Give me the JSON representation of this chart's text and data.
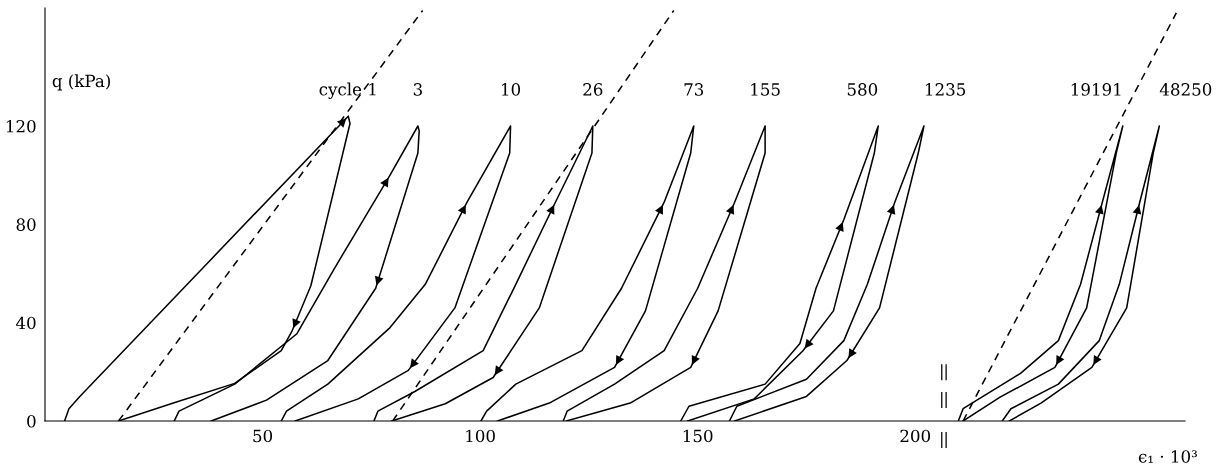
{
  "chart_data": {
    "type": "line",
    "xlabel": "ϵ₁ · 10³",
    "ylabel": "q (kPa)",
    "xlim": [
      0,
      262
    ],
    "ylim": [
      0,
      168
    ],
    "xticks": [
      50,
      100,
      150,
      200
    ],
    "yticks": [
      0,
      40,
      80,
      120
    ],
    "grid": false,
    "series": [
      {
        "name": "cycle 1",
        "color": "#000000",
        "line_style": "solid",
        "x": [
          4.5,
          5.5,
          8,
          37.6,
          69.7,
          70.1,
          61.1,
          56.8,
          54.3,
          43.6,
          29.5,
          16.9
        ],
        "values": [
          0,
          5,
          10,
          64.7,
          124,
          121,
          55,
          36.7,
          28.6,
          15.3,
          7.3,
          0
        ]
      },
      {
        "name": "3",
        "color": "#000000",
        "line_style": "solid",
        "x": [
          29.7,
          30.8,
          43.6,
          57.9,
          66.5,
          79.3,
          85.7,
          86,
          85.7,
          76,
          65,
          50.9,
          38.2
        ],
        "values": [
          0,
          4,
          15,
          35.5,
          62,
          100,
          120,
          118,
          109,
          54,
          24.6,
          8.5,
          0
        ]
      },
      {
        "name": "10",
        "color": "#000000",
        "line_style": "solid",
        "x": [
          54.3,
          55.5,
          65,
          79.3,
          87.4,
          97,
          107,
          106.8,
          94.2,
          83.5,
          72,
          57.5
        ],
        "values": [
          0,
          4,
          15,
          38,
          55.6,
          89,
          120,
          109,
          46,
          20.6,
          9,
          0
        ]
      },
      {
        "name": "26",
        "color": "#000000",
        "line_style": "solid",
        "x": [
          75.6,
          76.5,
          85,
          100.7,
          108.2,
          117.3,
          125.9,
          125.7,
          113.6,
          103,
          92,
          79.7
        ],
        "values": [
          0,
          4,
          12,
          28.6,
          55.6,
          89,
          120,
          109,
          46,
          17.7,
          7,
          0
        ]
      },
      {
        "name": "73",
        "color": "#000000",
        "line_style": "solid",
        "x": [
          100.2,
          101.5,
          108.2,
          123.4,
          132.5,
          142.3,
          149.1,
          148.4,
          138,
          130.9,
          115.9,
          104
        ],
        "values": [
          0,
          4,
          15,
          28.6,
          54,
          89,
          120,
          109,
          44.8,
          21.8,
          7.3,
          0
        ]
      },
      {
        "name": "155",
        "color": "#000000",
        "line_style": "solid",
        "x": [
          119.1,
          120,
          130.9,
          142.3,
          150,
          158.5,
          165.5,
          165.5,
          154.7,
          148.4,
          134.5,
          119.8
        ],
        "values": [
          0,
          4,
          15,
          28.6,
          54,
          89,
          120,
          109,
          44.8,
          21.8,
          7.3,
          0
        ]
      },
      {
        "name": "580",
        "color": "#000000",
        "line_style": "solid",
        "x": [
          146.1,
          148,
          165.5,
          173.5,
          177.2,
          183.6,
          191.5,
          190.6,
          181.2,
          174.2,
          163,
          147.7
        ],
        "values": [
          0,
          6,
          15,
          31.5,
          54,
          82,
          120,
          109,
          44.8,
          28.6,
          9,
          0
        ]
      },
      {
        "name": "1235",
        "color": "#000000",
        "line_style": "solid",
        "x": [
          157.3,
          159,
          175,
          183.6,
          189,
          195.3,
          202,
          200.7,
          191.8,
          184.3,
          175,
          158.5
        ],
        "values": [
          0,
          6,
          17,
          32.7,
          55.6,
          89,
          120,
          109,
          46,
          24.6,
          10,
          0
        ]
      },
      {
        "name": "19191",
        "color": "#000000",
        "line_style": "solid",
        "x": [
          209.9,
          211,
          224.2,
          232.9,
          238,
          243,
          247.7,
          246.2,
          239.4,
          232.1,
          219.5,
          211
        ],
        "values": [
          0,
          5,
          19.4,
          32.7,
          55.6,
          89,
          120,
          109,
          46,
          21.8,
          9.7,
          0
        ]
      },
      {
        "name": "48250",
        "color": "#000000",
        "line_style": "solid",
        "x": [
          220,
          222,
          232.9,
          242.3,
          246.9,
          251.6,
          256.1,
          254.7,
          248.6,
          240.6,
          228.9,
          221.6
        ],
        "values": [
          0,
          5,
          15,
          32.7,
          55.6,
          89,
          120,
          109,
          46,
          21.8,
          7.3,
          0
        ]
      },
      {
        "color": "#000000",
        "line_style": "dashed",
        "x": [
          16.9,
          86.8
        ],
        "values": [
          0,
          167
        ]
      },
      {
        "color": "#000000",
        "line_style": "dashed",
        "x": [
          79.9,
          144.5
        ],
        "values": [
          0,
          167
        ]
      },
      {
        "color": "#000000",
        "line_style": "dashed",
        "x": [
          211,
          260
        ],
        "values": [
          0,
          166
        ]
      }
    ]
  }
}
